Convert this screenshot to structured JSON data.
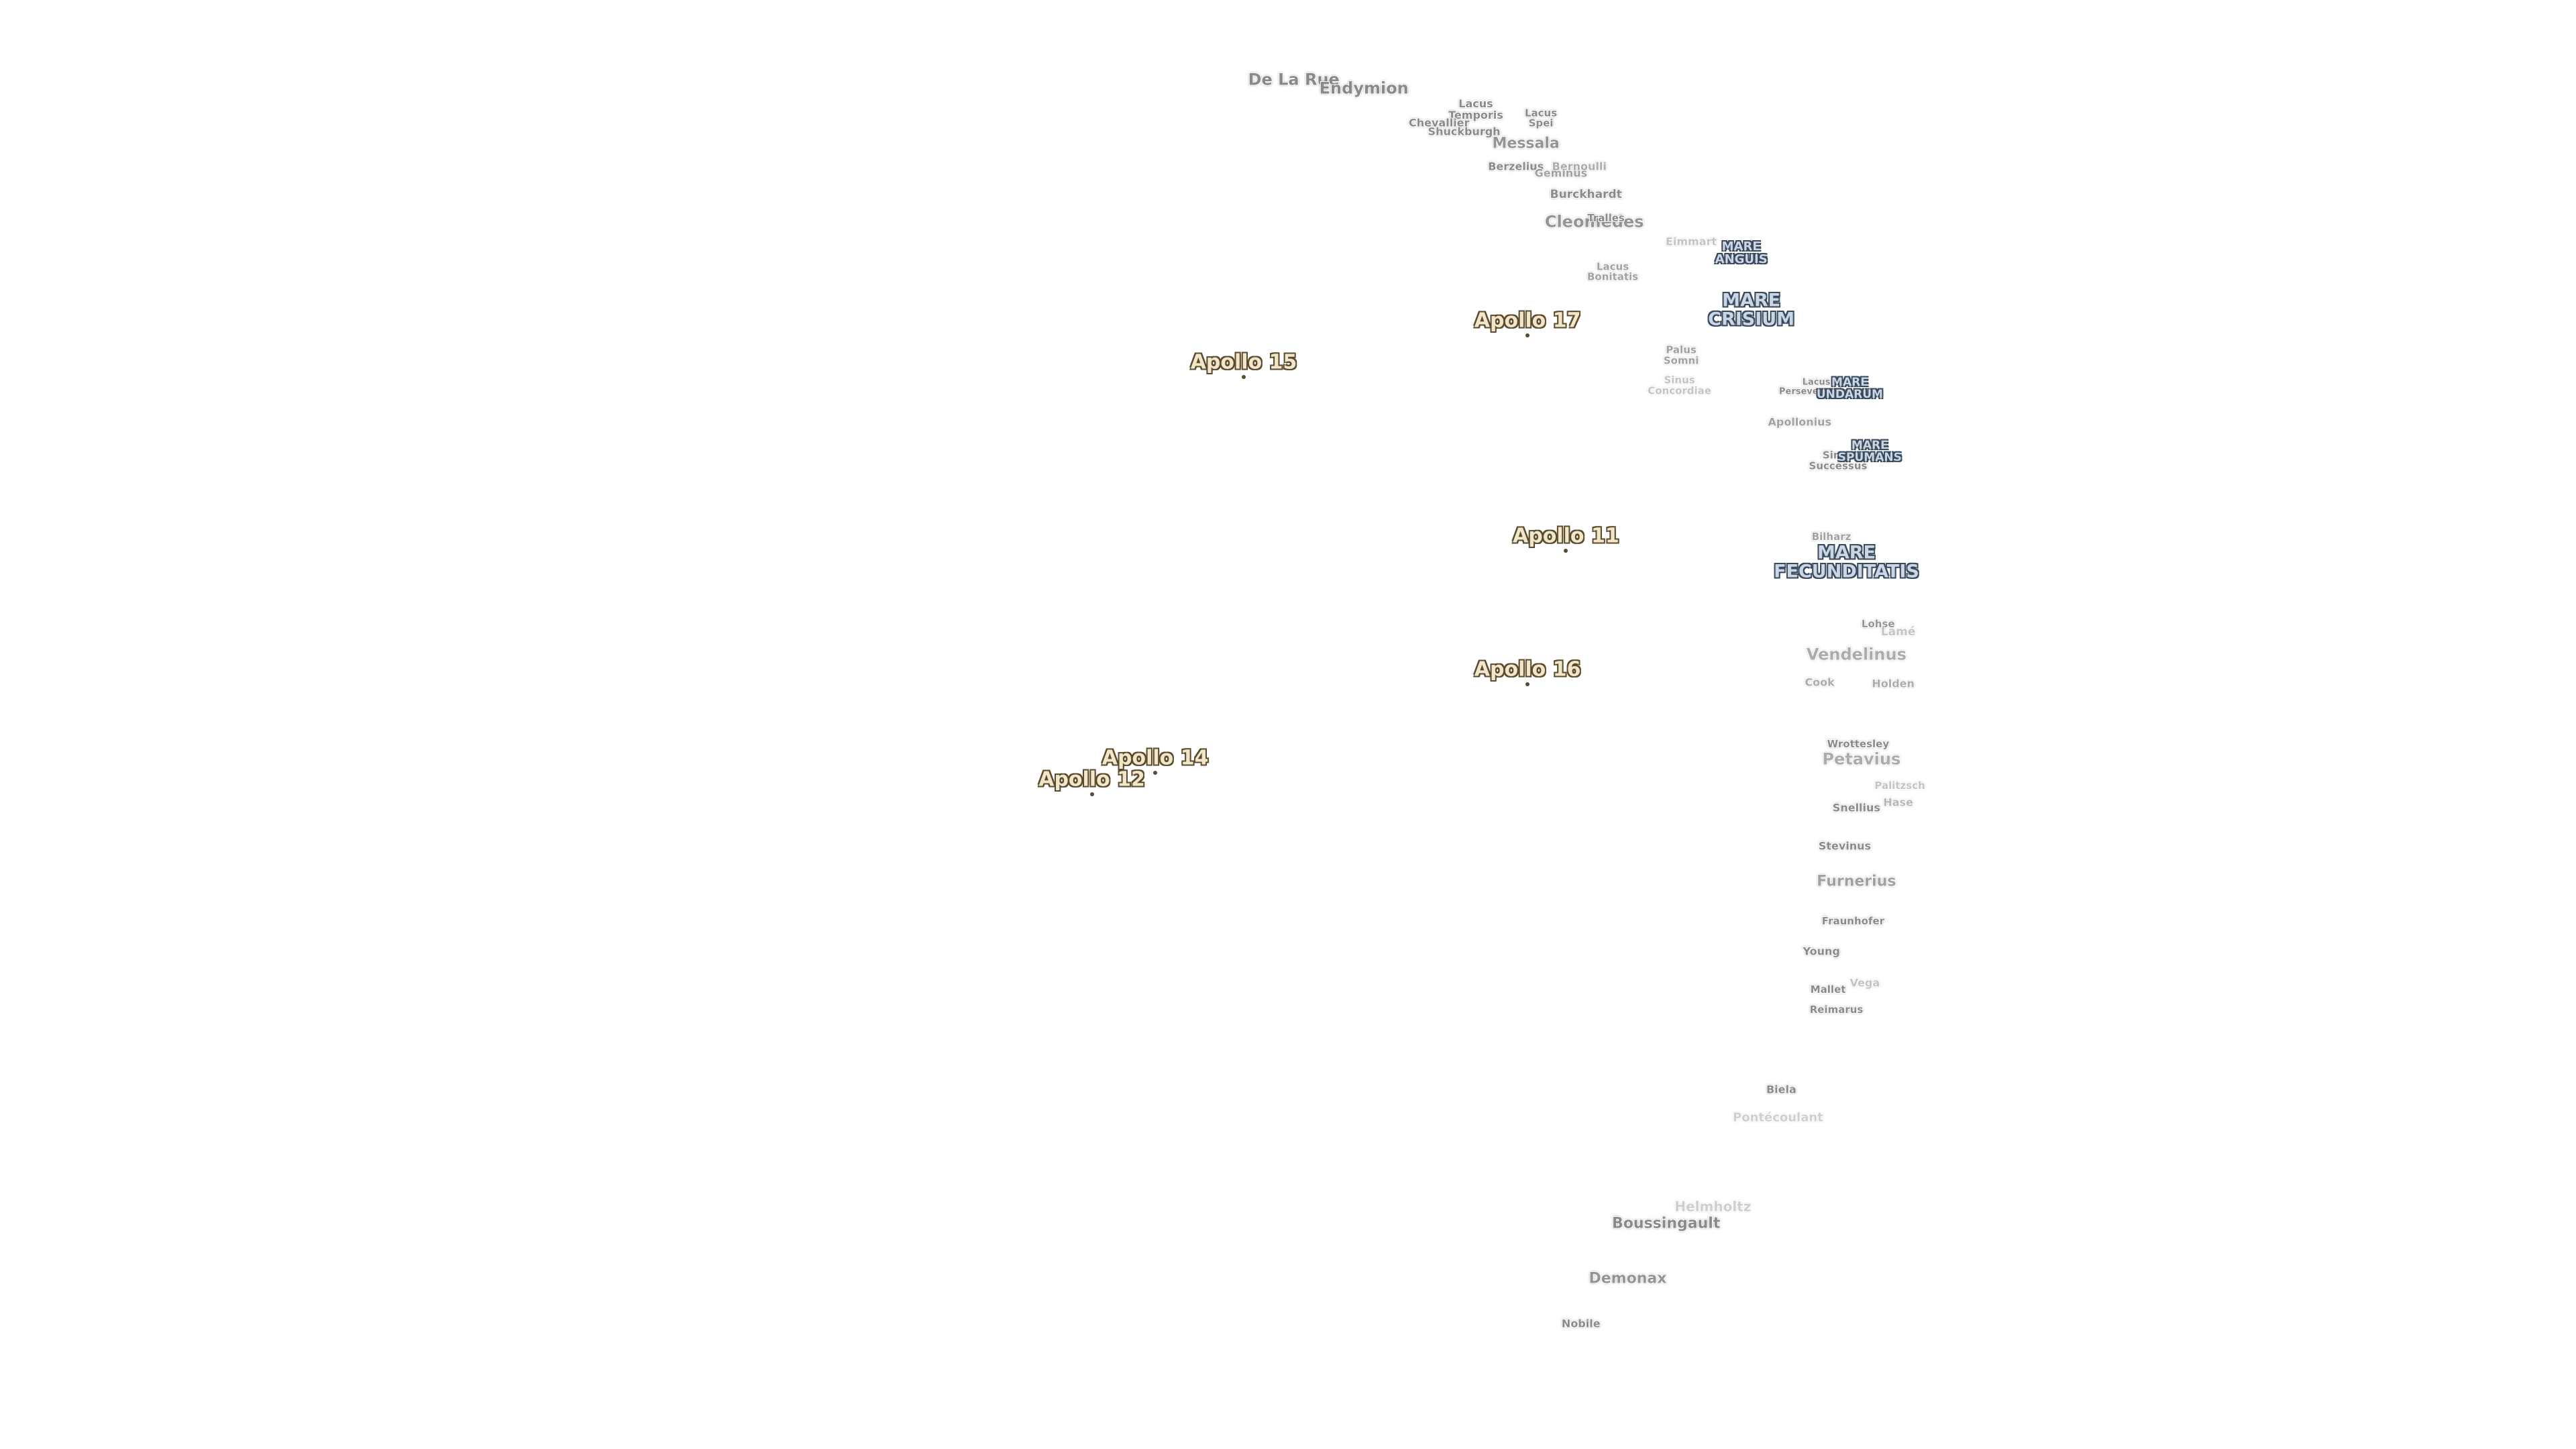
{
  "landing_sites": [
    "Apollo 17",
    "Apollo 15",
    "Apollo 11",
    "Apollo 16",
    "Apollo 14",
    "Apollo 12"
  ],
  "maria": [
    [
      "MARE",
      "ANGUIS"
    ],
    [
      "MARE",
      "CRISIUM"
    ],
    [
      "MARE",
      "UNDARUM"
    ],
    [
      "MARE",
      "SPUMANS"
    ],
    [
      "MARE",
      "FECUNDITATIS"
    ]
  ],
  "features": [
    "De La Rue",
    "Endymion",
    [
      "Lacus",
      "Temporis"
    ],
    "Chevallier",
    "Shuckburgh",
    [
      "Lacus",
      "Spei"
    ],
    "Messala",
    "Berzelius",
    "Bernoulli",
    "Geminus",
    "Burckhardt",
    "Cleomedes",
    "Tralles",
    "Eimmart",
    [
      "Lacus",
      "Bonitatis"
    ],
    [
      "Palus",
      "Somni"
    ],
    [
      "Sinus",
      "Concordiae"
    ],
    [
      "Lacus",
      "Perseverantiae"
    ],
    "Apollonius",
    [
      "Sinus",
      "Successus"
    ],
    "Bilharz",
    "Lohse",
    "Lamé",
    "Vendelinus",
    "Cook",
    "Holden",
    "Wrottesley",
    "Petavius",
    "Palitzsch",
    "Hase",
    "Snellius",
    "Stevinus",
    "Furnerius",
    "Fraunhofer",
    "Young",
    "Vega",
    "Mallet",
    "Reimarus",
    "Biela",
    "Pontécoulant",
    "Helmholtz",
    "Boussingault",
    "Demonax",
    "Nobile"
  ]
}
